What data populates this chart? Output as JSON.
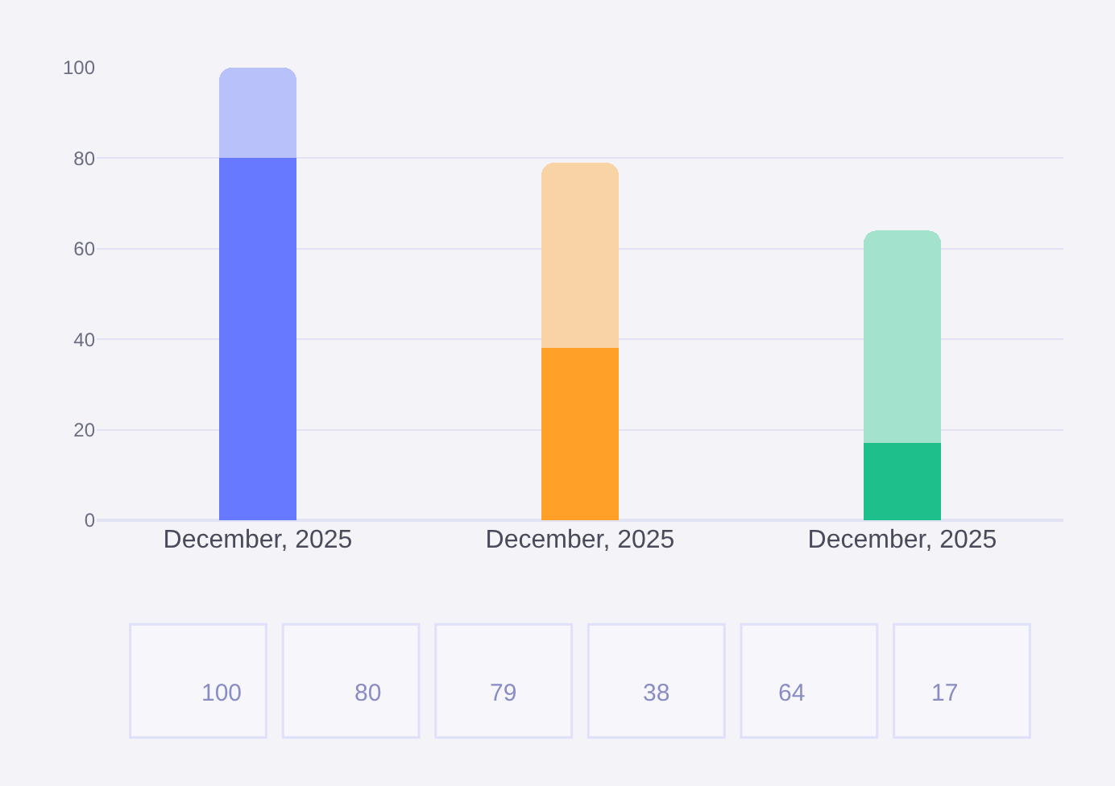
{
  "chart_data": {
    "type": "bar",
    "categories": [
      "December, 2025",
      "December, 2025",
      "December, 2025"
    ],
    "series": [
      {
        "colors": [
          "#6779ff",
          "#ffa127",
          "#1dbf8b"
        ],
        "values": [
          80,
          38,
          17
        ]
      },
      {
        "colors": [
          "#b9c1fa",
          "#f8d3a6",
          "#a3e3ce"
        ],
        "values": [
          20,
          41,
          47
        ]
      }
    ],
    "stacked": true,
    "ylim": [
      0,
      100
    ],
    "yticks": [
      0,
      20,
      40,
      60,
      80,
      100
    ],
    "grid": "y",
    "annotations": [
      "100",
      "80",
      "79",
      "38",
      "64",
      "17"
    ]
  }
}
